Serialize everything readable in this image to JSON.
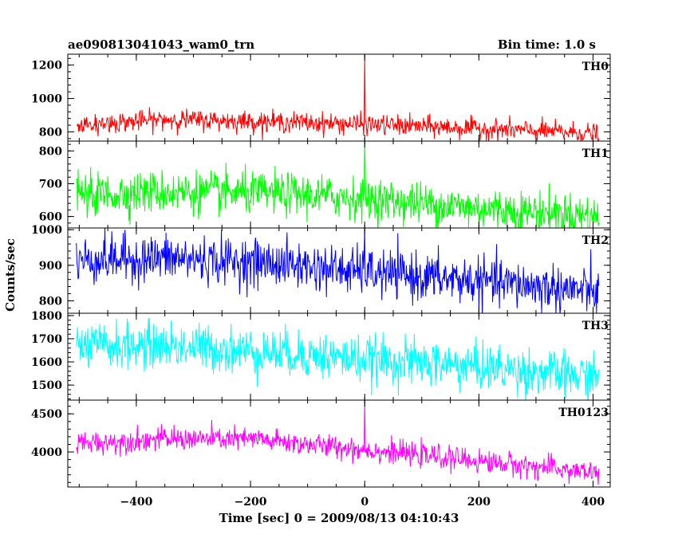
{
  "chart_data": {
    "type": "line",
    "title_left": "ae090813041043_wam0_trn",
    "title_right": "Bin time: 1.0 s",
    "xlabel": "Time [sec] 0 = 2009/08/13 04:10:43",
    "ylabel": "Counts/sec",
    "xlim": [
      -520,
      430
    ],
    "x_ticks": [
      -400,
      -200,
      0,
      200,
      400
    ],
    "x_tick_labels": [
      "−400",
      "−200",
      "0",
      "200",
      "400"
    ],
    "x_data_range": [
      -505,
      410
    ],
    "bin_time_s": 1.0,
    "grid": false,
    "panels": [
      {
        "name": "TH0",
        "color": "#ff0000",
        "ylim": [
          745,
          1265
        ],
        "y_ticks": [
          800,
          1000,
          1200
        ],
        "y_tick_labels": [
          "800",
          "1000",
          "1200"
        ],
        "trend": [
          [
            -505,
            840
          ],
          [
            -350,
            875
          ],
          [
            -150,
            860
          ],
          [
            0,
            845
          ],
          [
            200,
            820
          ],
          [
            410,
            790
          ]
        ],
        "noise_sigma": 30,
        "spike": {
          "x": 0,
          "peak": 1265
        }
      },
      {
        "name": "TH1",
        "color": "#00ff00",
        "ylim": [
          565,
          830
        ],
        "y_ticks": [
          600,
          700,
          800
        ],
        "y_tick_labels": [
          "600",
          "700",
          "800"
        ],
        "trend": [
          [
            -505,
            665
          ],
          [
            -350,
            675
          ],
          [
            -150,
            670
          ],
          [
            0,
            655
          ],
          [
            200,
            625
          ],
          [
            410,
            600
          ]
        ],
        "noise_sigma": 32,
        "spike": {
          "x": 0,
          "peak": 830
        }
      },
      {
        "name": "TH2",
        "color": "#0000ff",
        "ylim": [
          765,
          1005
        ],
        "y_ticks": [
          800,
          900,
          1000
        ],
        "y_tick_labels": [
          "800",
          "900",
          "1000"
        ],
        "trend": [
          [
            -505,
            915
          ],
          [
            -350,
            920
          ],
          [
            -150,
            905
          ],
          [
            0,
            880
          ],
          [
            200,
            855
          ],
          [
            410,
            825
          ]
        ],
        "noise_sigma": 33,
        "spike": {
          "x": 0,
          "peak": 1005
        }
      },
      {
        "name": "TH3",
        "color": "#00ffff",
        "ylim": [
          1435,
          1810
        ],
        "y_ticks": [
          1500,
          1600,
          1700,
          1800
        ],
        "y_tick_labels": [
          "1500",
          "1600",
          "1700",
          "1800"
        ],
        "trend": [
          [
            -505,
            1665
          ],
          [
            -350,
            1670
          ],
          [
            -150,
            1640
          ],
          [
            0,
            1610
          ],
          [
            200,
            1580
          ],
          [
            410,
            1530
          ]
        ],
        "noise_sigma": 50,
        "spike": null
      },
      {
        "name": "TH0123",
        "color": "#ff00ff",
        "ylim": [
          3540,
          4680
        ],
        "y_ticks": [
          4000,
          4500
        ],
        "y_tick_labels": [
          "4000",
          "4500"
        ],
        "trend": [
          [
            -505,
            4110
          ],
          [
            -350,
            4170
          ],
          [
            -200,
            4170
          ],
          [
            -100,
            4100
          ],
          [
            0,
            4030
          ],
          [
            200,
            3880
          ],
          [
            410,
            3720
          ]
        ],
        "noise_sigma": 75,
        "spike": {
          "x": 0,
          "peak": 4680
        }
      }
    ]
  }
}
